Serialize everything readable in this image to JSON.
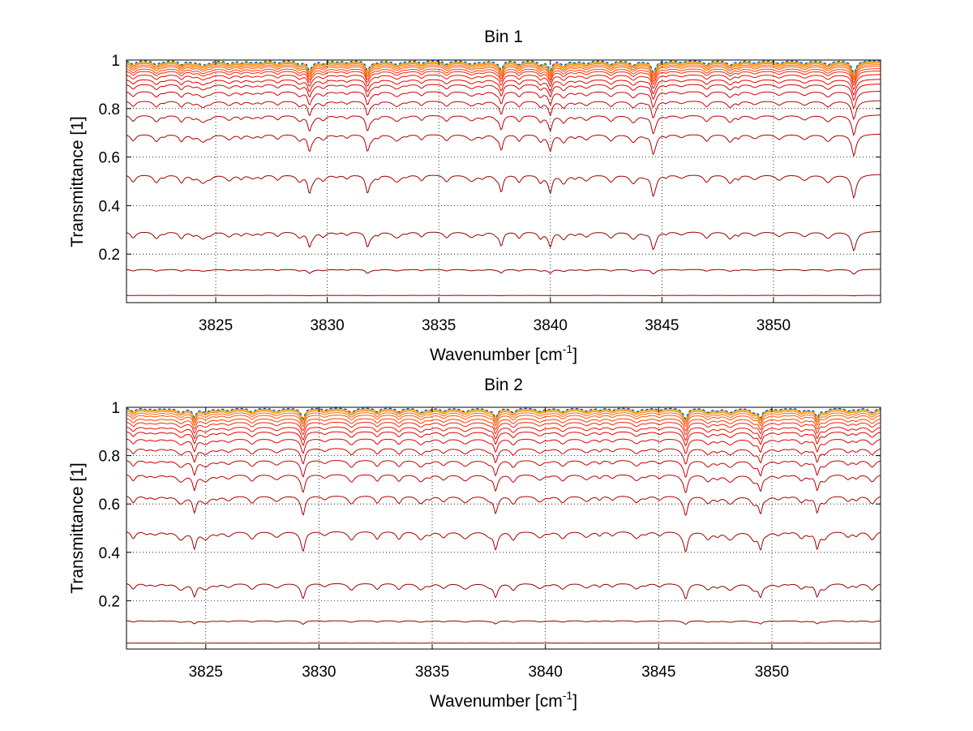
{
  "chart_data": [
    {
      "type": "line",
      "title": "Bin 1",
      "xlabel": "Wavenumber [cm",
      "xlabel_sup": "-1",
      "xlabel_end": "]",
      "ylabel": "Transmittance [1]",
      "xlim": [
        3821,
        3854.8
      ],
      "ylim": [
        0,
        1
      ],
      "xticks": [
        "3825",
        "3830",
        "3835",
        "3840",
        "3845",
        "3850"
      ],
      "yticks": [
        "0.2",
        "0.4",
        "0.6",
        "0.8",
        "1"
      ],
      "xtick_values": [
        3825,
        3830,
        3835,
        3840,
        3845,
        3850
      ],
      "ytick_values": [
        0.2,
        0.4,
        0.6,
        0.8,
        1
      ],
      "grid": true,
      "series_baselines": [
        0.01,
        0.12,
        0.28,
        0.52,
        0.69,
        0.77,
        0.83,
        0.87,
        0.9,
        0.92,
        0.94,
        0.955,
        0.965,
        0.975,
        0.982,
        0.988,
        0.992,
        0.995,
        0.997,
        0.999
      ],
      "series_colors": [
        "#7f0000",
        "#8a0000",
        "#960000",
        "#a10000",
        "#ad0000",
        "#b80000",
        "#c40000",
        "#cf0000",
        "#db0000",
        "#e60000",
        "#f20a00",
        "#ff2000",
        "#ff3800",
        "#ff5000",
        "#ff6800",
        "#ff8000",
        "#ff9800",
        "#ffb000",
        "#00a8ff",
        "#0050c8"
      ],
      "strong_lines": [
        3829.2,
        3831.8,
        3837.8,
        3840.0,
        3844.6,
        3853.6
      ]
    },
    {
      "type": "line",
      "title": "Bin 2",
      "xlabel": "Wavenumber [cm",
      "xlabel_sup": "-1",
      "xlabel_end": "]",
      "ylabel": "Transmittance [1]",
      "xlim": [
        3821.5,
        3854.8
      ],
      "ylim": [
        0,
        1
      ],
      "xticks": [
        "3825",
        "3830",
        "3835",
        "3840",
        "3845",
        "3850"
      ],
      "yticks": [
        "0.2",
        "0.4",
        "0.6",
        "0.8",
        "1"
      ],
      "xtick_values": [
        3825,
        3830,
        3835,
        3840,
        3845,
        3850
      ],
      "ytick_values": [
        0.2,
        0.4,
        0.6,
        0.8,
        1
      ],
      "grid": true,
      "series_baselines": [
        0.005,
        0.1,
        0.26,
        0.48,
        0.63,
        0.72,
        0.78,
        0.83,
        0.87,
        0.9,
        0.92,
        0.94,
        0.955,
        0.97,
        0.98,
        0.988,
        0.993,
        0.996,
        0.998,
        0.999
      ],
      "series_colors": [
        "#7f0000",
        "#8a0000",
        "#960000",
        "#a10000",
        "#ad0000",
        "#b80000",
        "#c40000",
        "#cf0000",
        "#db0000",
        "#e60000",
        "#f20a00",
        "#ff2000",
        "#ff3800",
        "#ff5000",
        "#ff6800",
        "#ff8000",
        "#ff9800",
        "#ffb000",
        "#00a8ff",
        "#0050c8"
      ],
      "strong_lines": [
        3824.5,
        3829.3,
        3837.8,
        3846.2,
        3849.5,
        3852.0
      ]
    }
  ]
}
